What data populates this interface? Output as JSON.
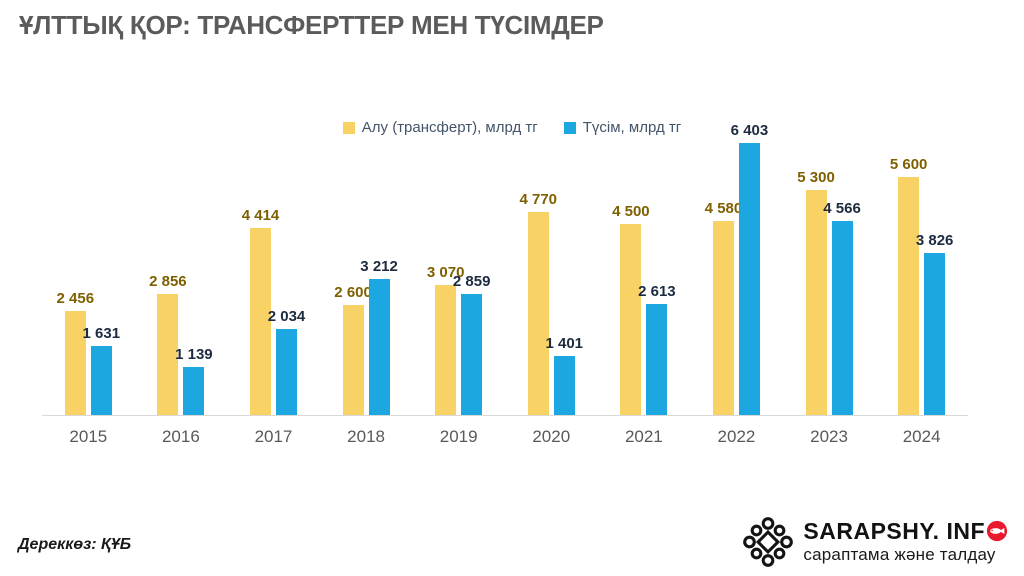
{
  "page": {
    "title": "ҰЛТТЫҚ ҚОР: ТРАНСФЕРТТЕР МЕН ТҮСІМДЕР"
  },
  "source_note": "Дереккөз: ҚҰБ",
  "logo": {
    "brand_prefix": "SARAPSHY. INF",
    "brand_last_letter": "O",
    "tagline": "сараптама және талдау"
  },
  "colors": {
    "title_text": "#5b5b5b",
    "legend_text": "#44546a",
    "axis_text": "#595959",
    "axis_line": "#d9d9d9",
    "logo_red": "#e8192c",
    "logo_black": "#121212"
  },
  "chart_data": {
    "type": "bar",
    "title": "ҰЛТТЫҚ ҚОР: ТРАНСФЕРТТЕР МЕН ТҮСІМДЕР",
    "categories": [
      "2015",
      "2016",
      "2017",
      "2018",
      "2019",
      "2020",
      "2021",
      "2022",
      "2023",
      "2024"
    ],
    "series": [
      {
        "name": "Алу (трансферт), млрд тг",
        "color": "#f8d264",
        "label_color": "#7f6000",
        "values": [
          2456,
          2856,
          4414,
          2600,
          3070,
          4770,
          4500,
          4580,
          5300,
          5600
        ]
      },
      {
        "name": "Түсім, млрд тг",
        "color": "#1ca7e0",
        "label_color": "#1c2b3f",
        "values": [
          1631,
          1139,
          2034,
          3212,
          2859,
          1401,
          2613,
          6403,
          4566,
          3826
        ]
      }
    ],
    "xlabel": "",
    "ylabel": "млрд тг",
    "ylim": [
      0,
      6500
    ],
    "grid": false,
    "legend_position": "top",
    "data_labels": true,
    "number_format": "space-thousands"
  }
}
